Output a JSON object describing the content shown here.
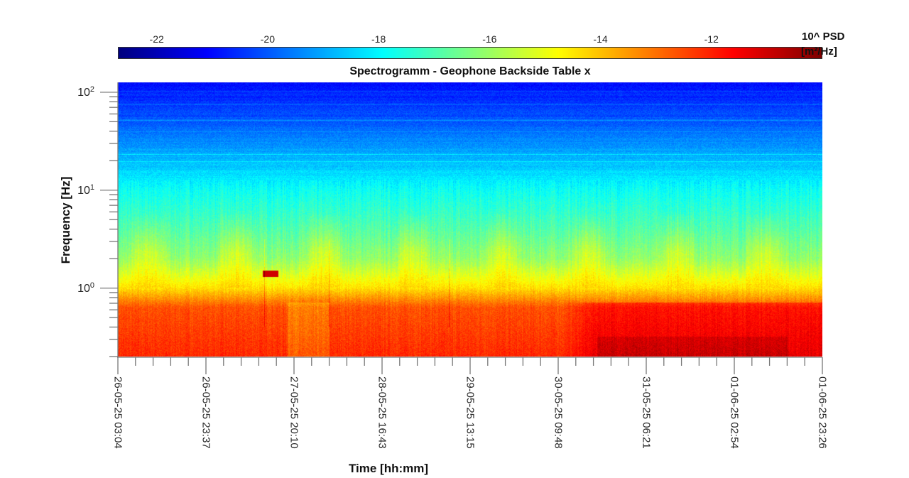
{
  "chart_data": {
    "type": "heatmap",
    "title": "Spectrogramm - Geophone Backside Table x",
    "xlabel": "Time [hh:mm]",
    "ylabel": "Frequency [Hz]",
    "yscale": "log",
    "ylim": [
      0.2,
      126
    ],
    "y_ticks": [
      {
        "base": "10",
        "exp": "0"
      },
      {
        "base": "10",
        "exp": "1"
      },
      {
        "base": "10",
        "exp": "2"
      }
    ],
    "x_ticks": [
      "26-05-25 03:04",
      "26-05-25 23:37",
      "27-05-25 20:10",
      "28-05-25 16:43",
      "29-05-25 13:15",
      "30-05-25 09:48",
      "31-05-25 06:21",
      "01-06-25 02:54",
      "01-06-25 23:26"
    ],
    "x_minor_per_major": 4,
    "colorbar": {
      "label": "10^ PSD",
      "unit": "[m²/Hz]",
      "colormap": "jet",
      "range": [
        -22.7,
        -10
      ],
      "ticks": [
        "-22",
        "-20",
        "-18",
        "-16",
        "-14",
        "-12"
      ],
      "tick_values": [
        -22,
        -20,
        -18,
        -16,
        -14,
        -12
      ]
    },
    "profile_log10_psd": {
      "log10_freq": [
        2.1,
        1.7,
        1.3,
        1.0,
        0.6,
        0.3,
        0.0,
        -0.2,
        -0.7
      ],
      "value": [
        -21,
        -20,
        -18.8,
        -17.8,
        -16.9,
        -16.1,
        -14.4,
        -12.6,
        -12.1
      ]
    }
  }
}
